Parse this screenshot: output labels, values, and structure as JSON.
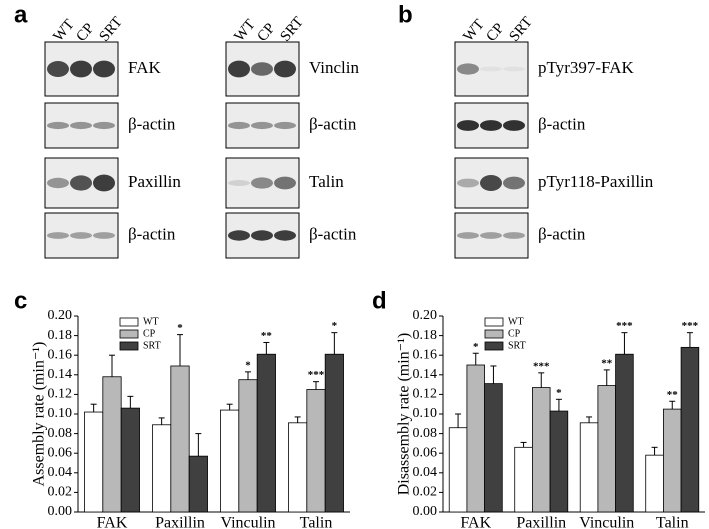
{
  "panels": [
    "a",
    "b",
    "c",
    "d"
  ],
  "blots": [
    {
      "lanes": [
        "WT",
        "CP",
        "SRT"
      ],
      "rows": [
        "FAK",
        "β-actin",
        "Paxillin",
        "β-actin"
      ]
    },
    {
      "lanes": [
        "WT",
        "CP",
        "SRT"
      ],
      "rows": [
        "Vinclin",
        "β-actin",
        "Talin",
        "β-actin"
      ]
    },
    {
      "lanes": [
        "WT",
        "CP",
        "SRT"
      ],
      "rows": [
        "pTyr397-FAK",
        "β-actin",
        "pTyr118-Paxillin",
        "β-actin"
      ]
    }
  ],
  "chart_data": [
    {
      "type": "bar",
      "y_label": "Assembly rate (min⁻¹)",
      "categories": [
        "FAK",
        "Paxillin",
        "Vinculin",
        "Talin"
      ],
      "series": [
        {
          "name": "WT",
          "color": "#ffffff",
          "values": [
            0.102,
            0.089,
            0.104,
            0.091
          ],
          "errors": [
            0.008,
            0.007,
            0.006,
            0.006
          ],
          "stars": [
            null,
            null,
            null,
            null
          ]
        },
        {
          "name": "CP",
          "color": "#b8b8b8",
          "values": [
            0.138,
            0.149,
            0.135,
            0.125
          ],
          "errors": [
            0.022,
            0.032,
            0.008,
            0.008
          ],
          "stars": [
            null,
            "*",
            "*",
            "***"
          ]
        },
        {
          "name": "SRT",
          "color": "#404040",
          "values": [
            0.106,
            0.057,
            0.161,
            0.161
          ],
          "errors": [
            0.012,
            0.023,
            0.012,
            0.022
          ],
          "stars": [
            null,
            null,
            "**",
            "*"
          ]
        }
      ],
      "ylim": [
        0,
        0.2
      ],
      "yticks": [
        {
          "value": 0,
          "label": "0.00"
        },
        {
          "value": 0.02,
          "label": "0.02"
        },
        {
          "value": 0.04,
          "label": "0.04"
        },
        {
          "value": 0.06,
          "label": "0.06"
        },
        {
          "value": 0.08,
          "label": "0.08"
        },
        {
          "value": 0.1,
          "label": "0.10"
        },
        {
          "value": 0.12,
          "label": "0.12"
        },
        {
          "value": 0.14,
          "label": "0.14"
        },
        {
          "value": 0.16,
          "label": "0.16"
        },
        {
          "value": 0.18,
          "label": "0.18"
        },
        {
          "value": 0.2,
          "label": "0.20"
        }
      ],
      "legend": "upper-left"
    },
    {
      "type": "bar",
      "y_label": "Disassembly rate (min⁻¹)",
      "categories": [
        "FAK",
        "Paxillin",
        "Vinculin",
        "Talin"
      ],
      "series": [
        {
          "name": "WT",
          "color": "#ffffff",
          "values": [
            0.086,
            0.066,
            0.091,
            0.058
          ],
          "errors": [
            0.014,
            0.005,
            0.006,
            0.008
          ],
          "stars": [
            null,
            null,
            null,
            null
          ]
        },
        {
          "name": "CP",
          "color": "#b8b8b8",
          "values": [
            0.15,
            0.127,
            0.129,
            0.105
          ],
          "errors": [
            0.012,
            0.015,
            0.016,
            0.008
          ],
          "stars": [
            "*",
            "***",
            "**",
            "**"
          ]
        },
        {
          "name": "SRT",
          "color": "#404040",
          "values": [
            0.131,
            0.103,
            0.161,
            0.168
          ],
          "errors": [
            0.018,
            0.012,
            0.022,
            0.015
          ],
          "stars": [
            null,
            "*",
            "***",
            "***"
          ]
        }
      ],
      "ylim": [
        0,
        0.2
      ],
      "yticks": [
        {
          "value": 0,
          "label": "0.00"
        },
        {
          "value": 0.02,
          "label": "0.02"
        },
        {
          "value": 0.04,
          "label": "0.04"
        },
        {
          "value": 0.06,
          "label": "0.06"
        },
        {
          "value": 0.08,
          "label": "0.08"
        },
        {
          "value": 0.1,
          "label": "0.10"
        },
        {
          "value": 0.12,
          "label": "0.12"
        },
        {
          "value": 0.14,
          "label": "0.14"
        },
        {
          "value": 0.16,
          "label": "0.16"
        },
        {
          "value": 0.18,
          "label": "0.18"
        },
        {
          "value": 0.2,
          "label": "0.20"
        }
      ],
      "legend": "upper-left"
    }
  ]
}
